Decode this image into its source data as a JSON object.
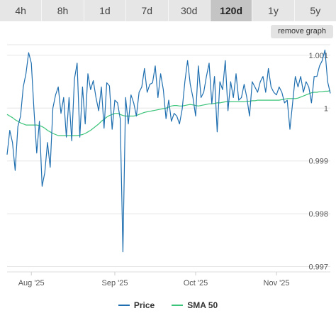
{
  "tabs": [
    {
      "label": "4h",
      "active": false
    },
    {
      "label": "8h",
      "active": false
    },
    {
      "label": "1d",
      "active": false
    },
    {
      "label": "7d",
      "active": false
    },
    {
      "label": "30d",
      "active": false
    },
    {
      "label": "120d",
      "active": true
    },
    {
      "label": "1y",
      "active": false
    },
    {
      "label": "5y",
      "active": false
    }
  ],
  "remove_graph_label": "remove graph",
  "colors": {
    "price": "#1f6fb0",
    "sma": "#3cc47a",
    "grid": "#e6e6e6"
  },
  "chart_data": {
    "type": "line",
    "title": "",
    "xlabel": "",
    "ylabel": "",
    "x_ticks": [
      "Aug '25",
      "Sep '25",
      "Oct '25",
      "Nov '25"
    ],
    "x_tick_positions": [
      9,
      40,
      70,
      100
    ],
    "y_ticks": [
      0.997,
      0.998,
      0.999,
      1,
      1.001
    ],
    "y_tick_labels": [
      "0.997",
      "0.998",
      "0.999",
      "1",
      "1.001"
    ],
    "ylim": [
      0.9969,
      1.0012
    ],
    "xlim": [
      0,
      120
    ],
    "grid": true,
    "legend_position": "bottom",
    "series": [
      {
        "name": "Price",
        "values": [
          0.99912,
          0.99958,
          0.99935,
          0.99882,
          0.99965,
          0.99985,
          1.0004,
          1.00065,
          1.00105,
          1.00085,
          0.99995,
          0.99915,
          0.99975,
          0.99852,
          0.99878,
          0.99935,
          0.99888,
          1.0,
          1.00025,
          1.0004,
          0.9999,
          1.0002,
          0.99945,
          1.0002,
          0.99938,
          1.00055,
          1.00085,
          0.99945,
          1.0004,
          0.9997,
          1.00065,
          1.00035,
          1.00052,
          1.0002,
          0.99995,
          1.0004,
          0.99962,
          1.00048,
          1.00042,
          0.9996,
          1.00015,
          1.0001,
          0.9998,
          0.99728,
          1.0002,
          0.9997,
          1.00025,
          1.0001,
          0.99985,
          1.0003,
          1.0004,
          1.00075,
          1.0003,
          1.00045,
          1.00048,
          1.0008,
          1.0002,
          1.00065,
          1.00035,
          0.9998,
          1.00015,
          0.99975,
          0.9999,
          0.99985,
          0.9997,
          0.99998,
          1.0005,
          1.0009,
          1.00045,
          1.0002,
          0.99985,
          1.0008,
          1.0002,
          1.0003,
          1.0006,
          1.00085,
          1.00008,
          1.0006,
          0.99955,
          1.0005,
          1.00035,
          1.0009,
          0.99995,
          1.0005,
          1.0002,
          1.00065,
          1.00015,
          1.0002,
          1.00045,
          1.0002,
          0.99985,
          1.0005,
          1.0004,
          1.0003,
          1.0005,
          1.0006,
          1.0003,
          1.00075,
          1.0004,
          1.0003,
          1.00025,
          1.0004,
          1.0003,
          1.0001,
          1.00015,
          0.9996,
          1.0001,
          1.0006,
          1.0004,
          1.0006,
          1.0003,
          1.0005,
          1.0004,
          1.0001,
          1.0006,
          1.0006,
          1.0008,
          1.0009,
          1.0011,
          1.0005,
          1.00028
        ]
      },
      {
        "name": "SMA 50",
        "values": [
          0.99988,
          0.99985,
          0.99982,
          0.99978,
          0.99975,
          0.99972,
          0.9997,
          0.99968,
          0.99968,
          0.99968,
          0.99968,
          0.99968,
          0.99967,
          0.99965,
          0.99962,
          0.99958,
          0.99955,
          0.99952,
          0.9995,
          0.99948,
          0.99948,
          0.99948,
          0.99948,
          0.99948,
          0.99948,
          0.99948,
          0.99948,
          0.99949,
          0.9995,
          0.99952,
          0.99955,
          0.99958,
          0.99962,
          0.99966,
          0.9997,
          0.99975,
          0.99979,
          0.99983,
          0.99986,
          0.99988,
          0.9999,
          0.9999,
          0.99988,
          0.99986,
          0.99985,
          0.99985,
          0.99985,
          0.99985,
          0.99986,
          0.99988,
          0.9999,
          0.99992,
          0.99993,
          0.99994,
          0.99995,
          0.99996,
          0.99997,
          0.99998,
          0.99999,
          1.0,
          1.00002,
          1.00004,
          1.00005,
          1.00005,
          1.00004,
          1.00004,
          1.00005,
          1.00006,
          1.00007,
          1.00006,
          1.00005,
          1.00004,
          1.00005,
          1.00006,
          1.00007,
          1.00008,
          1.00008,
          1.00009,
          1.0001,
          1.0001,
          1.00011,
          1.00012,
          1.00012,
          1.00012,
          1.00012,
          1.00012,
          1.00012,
          1.00012,
          1.00012,
          1.00013,
          1.00013,
          1.00014,
          1.00014,
          1.00015,
          1.00015,
          1.00015,
          1.00015,
          1.00015,
          1.00015,
          1.00015,
          1.00015,
          1.00015,
          1.00016,
          1.00017,
          1.00018,
          1.00018,
          1.00018,
          1.00018,
          1.00019,
          1.00021,
          1.00023,
          1.00025,
          1.00027,
          1.00029,
          1.0003,
          1.0003,
          1.00031,
          1.00031,
          1.00032,
          1.00032,
          1.00033
        ]
      }
    ]
  }
}
